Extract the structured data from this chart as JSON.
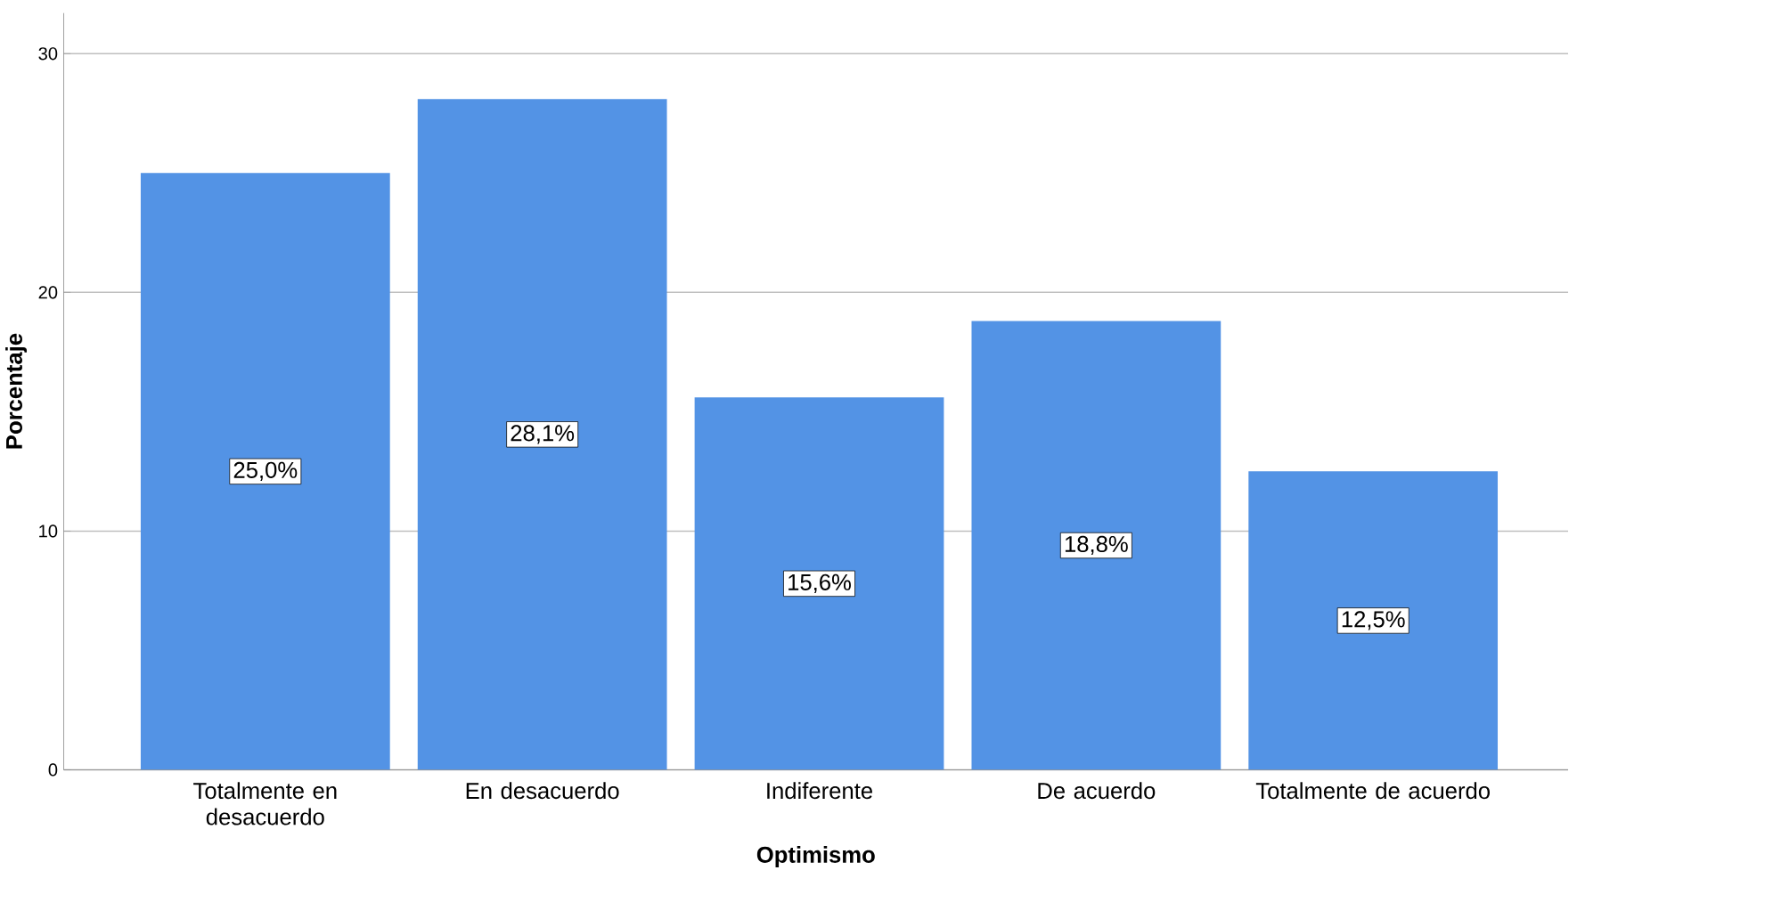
{
  "chart_data": {
    "type": "bar",
    "xlabel": "Optimismo",
    "ylabel": "Porcentaje",
    "categories": [
      "Totalmente en desacuerdo",
      "En desacuerdo",
      "Indiferente",
      "De acuerdo",
      "Totalmente de acuerdo"
    ],
    "values": [
      25.0,
      28.1,
      15.6,
      18.8,
      12.5
    ],
    "value_labels": [
      "25,0%",
      "28,1%",
      "15,6%",
      "18,8%",
      "12,5%"
    ],
    "color": "#5393e5",
    "ylim": [
      0,
      31.7
    ],
    "yticks": [
      0,
      10,
      20,
      30
    ],
    "grid": "y"
  }
}
